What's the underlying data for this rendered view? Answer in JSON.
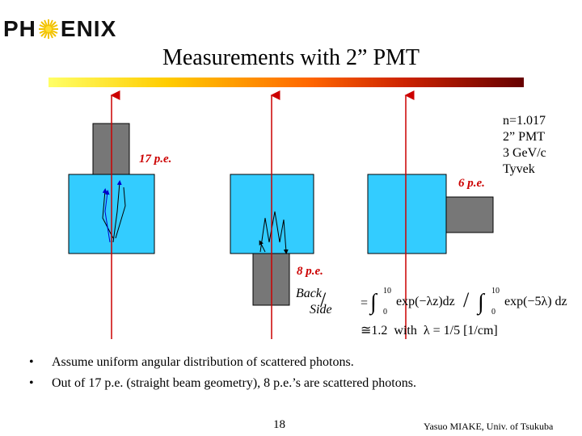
{
  "logo": {
    "left": "PH",
    "right": "ENIX"
  },
  "title": "Measurements with 2” PMT",
  "labels": {
    "pe17": "17 p.e.",
    "pe8": "8 p.e.",
    "pe6": "6 p.e."
  },
  "params": [
    "n=1.017",
    "2” PMT",
    "3 GeV/c",
    "Tyvek"
  ],
  "formula": {
    "back": "Back",
    "side": "Side",
    "eq": "=",
    "int_upper": "10",
    "int_lower": "0",
    "term1": "exp(−λz)dz",
    "term2": "exp(−5λ) dz",
    "line2": "≅1.2  with  λ = 1/5 [1/cm]"
  },
  "bullets": [
    "Assume uniform angular distribution of scattered photons.",
    "Out of 17 p.e. (straight beam geometry), 8 p.e.’s are scattered photons."
  ],
  "bullet_symbol": "•",
  "page_number": "18",
  "footer": "Yasuo MIAKE, Univ. of Tsukuba",
  "colors": {
    "radiator": "#33ccff",
    "pmt": "#777777",
    "beam": "#cc0000",
    "photon_arrow": "#0000cc"
  }
}
